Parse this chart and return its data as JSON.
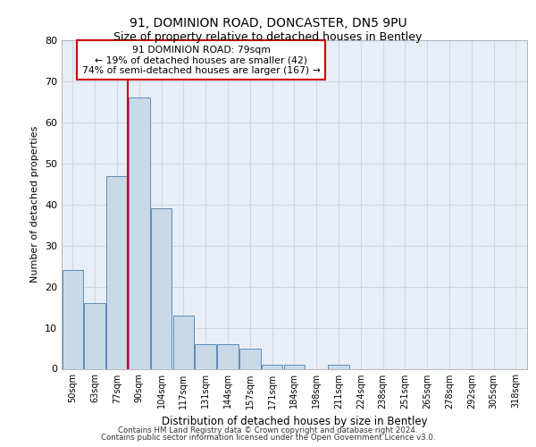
{
  "title1": "91, DOMINION ROAD, DONCASTER, DN5 9PU",
  "title2": "Size of property relative to detached houses in Bentley",
  "xlabel": "Distribution of detached houses by size in Bentley",
  "ylabel": "Number of detached properties",
  "categories": [
    "50sqm",
    "63sqm",
    "77sqm",
    "90sqm",
    "104sqm",
    "117sqm",
    "131sqm",
    "144sqm",
    "157sqm",
    "171sqm",
    "184sqm",
    "198sqm",
    "211sqm",
    "224sqm",
    "238sqm",
    "251sqm",
    "265sqm",
    "278sqm",
    "292sqm",
    "305sqm",
    "318sqm"
  ],
  "values": [
    24,
    16,
    47,
    66,
    39,
    13,
    6,
    6,
    5,
    1,
    1,
    0,
    1,
    0,
    0,
    0,
    0,
    0,
    0,
    0,
    0
  ],
  "bar_color": "#c9d9e8",
  "bar_edge_color": "#5b8db8",
  "property_line_bar_index": 3,
  "annotation_line1": "91 DOMINION ROAD: 79sqm",
  "annotation_line2": "← 19% of detached houses are smaller (42)",
  "annotation_line3": "74% of semi-detached houses are larger (167) →",
  "annotation_box_color": "#ffffff",
  "annotation_box_edge": "#cc0000",
  "ylim": [
    0,
    80
  ],
  "yticks": [
    0,
    10,
    20,
    30,
    40,
    50,
    60,
    70,
    80
  ],
  "grid_color": "#d0d8e4",
  "background_color": "#e8eef5",
  "footer1": "Contains HM Land Registry data © Crown copyright and database right 2024.",
  "footer2": "Contains public sector information licensed under the Open Government Licence v3.0."
}
